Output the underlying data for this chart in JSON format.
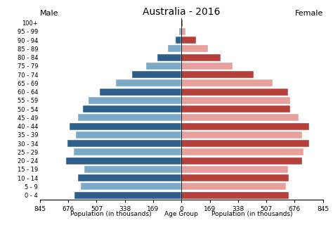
{
  "title": "Australia - 2016",
  "label_male": "Male",
  "label_female": "Female",
  "xlabel_left": "Population (in thousands)",
  "xlabel_center": "Age Group",
  "xlabel_right": "Population (in thousands)",
  "age_groups": [
    "100+",
    "95 - 99",
    "90 - 94",
    "85 - 89",
    "80 - 84",
    "75 - 79",
    "70 - 74",
    "65 - 69",
    "60 - 64",
    "55 - 59",
    "50 - 54",
    "45 - 49",
    "40 - 44",
    "35 - 39",
    "30 - 34",
    "25 - 29",
    "20 - 24",
    "15 - 19",
    "10 - 14",
    "5 - 9",
    "0 - 4"
  ],
  "male": [
    3,
    12,
    35,
    80,
    145,
    210,
    295,
    390,
    490,
    555,
    590,
    620,
    670,
    630,
    680,
    645,
    690,
    580,
    620,
    600,
    640
  ],
  "female": [
    8,
    22,
    85,
    160,
    235,
    305,
    430,
    545,
    635,
    650,
    650,
    700,
    760,
    720,
    760,
    730,
    720,
    635,
    640,
    625,
    640
  ],
  "color_male_dark": "#2e5f8a",
  "color_male_light": "#7aaac8",
  "color_female_dark": "#b5403a",
  "color_female_light": "#e8a09d",
  "xlim": 845,
  "xticks": [
    845,
    676,
    507,
    338,
    169,
    0,
    169,
    338,
    507,
    676,
    845
  ],
  "xtick_labels": [
    "845",
    "676",
    "507",
    "338",
    "169",
    "0",
    "169",
    "338",
    "507",
    "676",
    "845"
  ],
  "background_color": "#ffffff"
}
